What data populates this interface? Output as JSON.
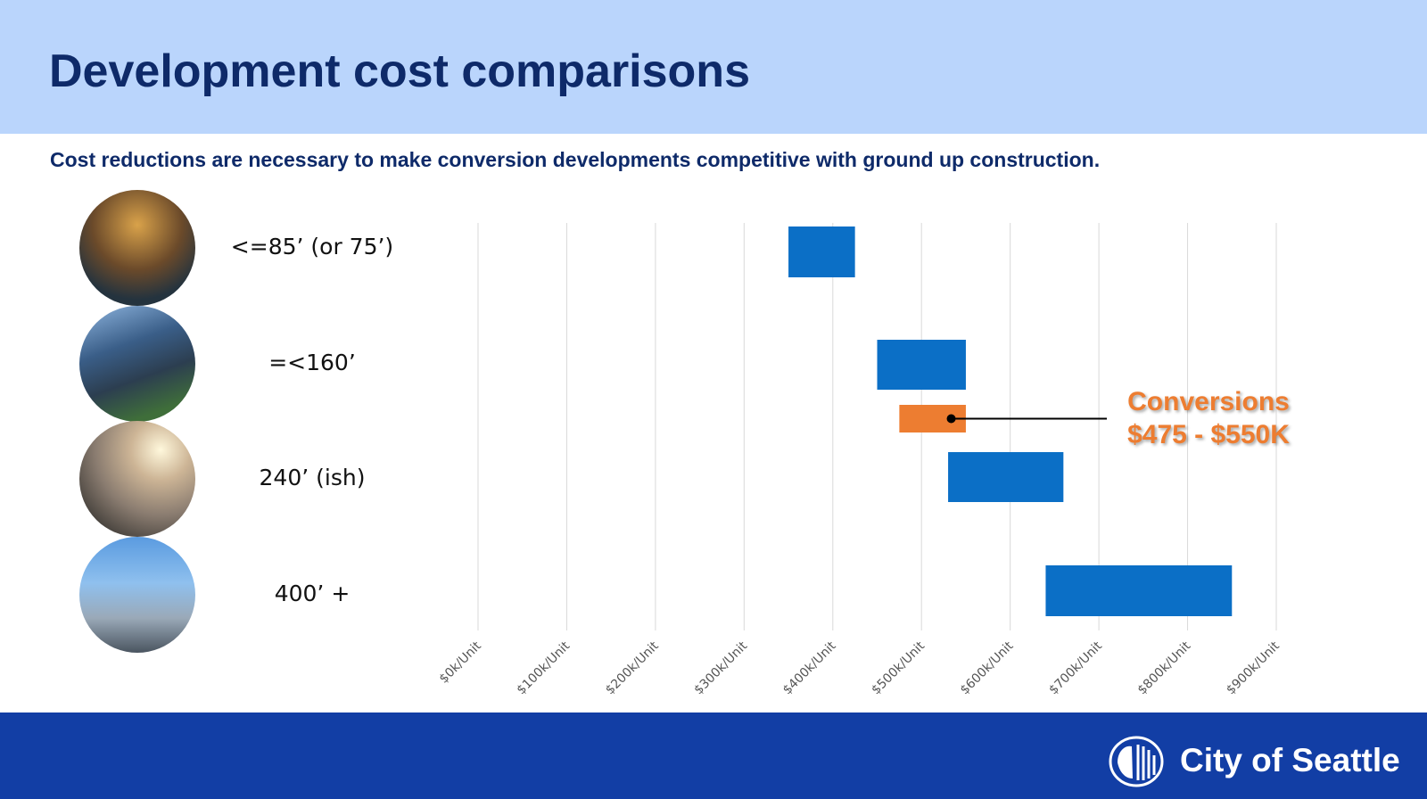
{
  "header": {
    "title": "Development cost comparisons"
  },
  "subtitle": "Cost reductions are necessary to make conversion developments competitive with ground up construction.",
  "rows": [
    {
      "label": "<=85’ (or 75’)"
    },
    {
      "label": "=<160’"
    },
    {
      "label": "240’ (ish)"
    },
    {
      "label": "400’ +"
    }
  ],
  "chart_data": {
    "type": "bar",
    "orientation": "horizontal-floating",
    "categories": [
      "<=85’ (or 75’)",
      "=<160’",
      "Conversions",
      "240’ (ish)",
      "400’ +"
    ],
    "ranges": [
      {
        "category": "<=85’ (or 75’)",
        "low": 350,
        "high": 425,
        "color": "#0b6fc6"
      },
      {
        "category": "=<160’",
        "low": 450,
        "high": 550,
        "color": "#0b6fc6"
      },
      {
        "category": "Conversions",
        "low": 475,
        "high": 550,
        "color": "#ed7d31"
      },
      {
        "category": "240’ (ish)",
        "low": 530,
        "high": 660,
        "color": "#0b6fc6"
      },
      {
        "category": "400’ +",
        "low": 640,
        "high": 850,
        "color": "#0b6fc6"
      }
    ],
    "xlim": [
      0,
      900
    ],
    "xticks": [
      "$0k/Unit",
      "$100k/Unit",
      "$200k/Unit",
      "$300k/Unit",
      "$400k/Unit",
      "$500k/Unit",
      "$600k/Unit",
      "$700k/Unit",
      "$800k/Unit",
      "$900k/Unit"
    ],
    "grid": true,
    "annotation": {
      "line1": "Conversions",
      "line2": "$475 - $550K",
      "color": "#ed7d31"
    }
  },
  "footer": {
    "logo_text": "City of Seattle",
    "logo_icon": "seattle-seal-icon"
  },
  "colors": {
    "header_bg": "#bad5fc",
    "title": "#0e2a69",
    "footer_bg": "#123ea5",
    "bar": "#0b6fc6",
    "highlight": "#ed7d31"
  }
}
